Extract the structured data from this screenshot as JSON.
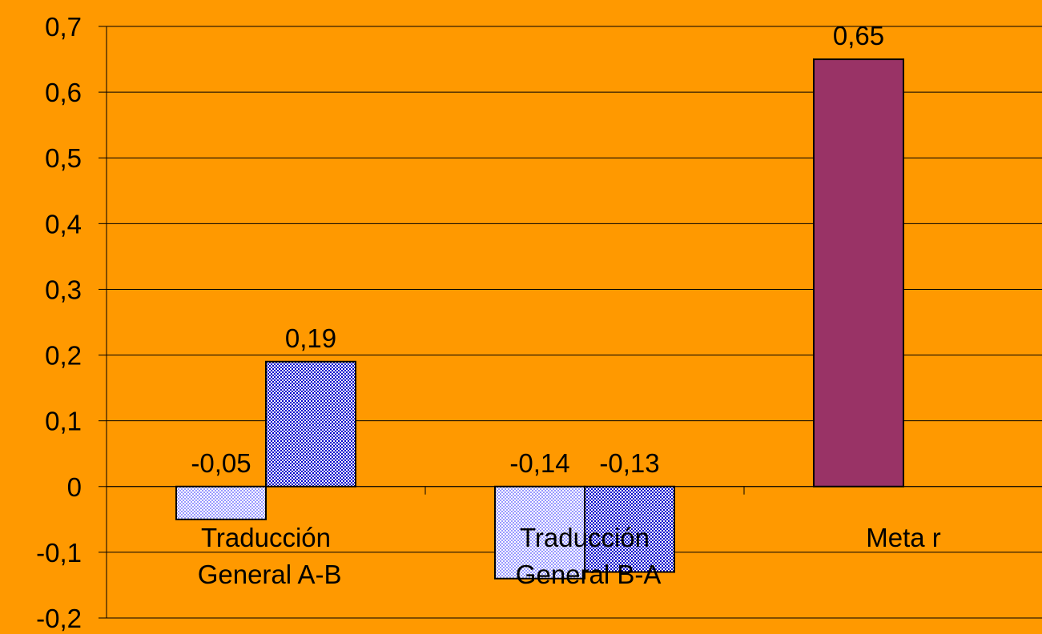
{
  "chart_data": {
    "type": "bar",
    "categories": [
      "Traducción General A-B",
      "Traducción General B-A",
      "Meta r"
    ],
    "series": [
      {
        "color": "#9999ff",
        "point_colors": [
          "#9999ff",
          "#9999ff",
          "#993366"
        ],
        "values": [
          -0.05,
          -0.14,
          0.65
        ],
        "value_labels": [
          "-0,05",
          "-0,14",
          "0,65"
        ]
      },
      {
        "color": "#0000cc",
        "values": [
          0.19,
          -0.13,
          null
        ],
        "value_labels": [
          "0,19",
          "-0,13",
          null
        ]
      }
    ],
    "ylim": [
      -0.2,
      0.7
    ],
    "yticks": [
      {
        "value": -0.2,
        "label": "-0,2"
      },
      {
        "value": -0.1,
        "label": "-0,1"
      },
      0,
      {
        "value": 0.1,
        "label": "0,1"
      },
      {
        "value": 0.2,
        "label": "0,2"
      },
      {
        "value": 0.3,
        "label": "0,3"
      },
      {
        "value": 0.4,
        "label": "0,4"
      },
      {
        "value": 0.5,
        "label": "0,5"
      },
      {
        "value": 0.6,
        "label": "0,6"
      },
      {
        "value": 0.7,
        "label": "0,7"
      }
    ],
    "grid": true
  }
}
